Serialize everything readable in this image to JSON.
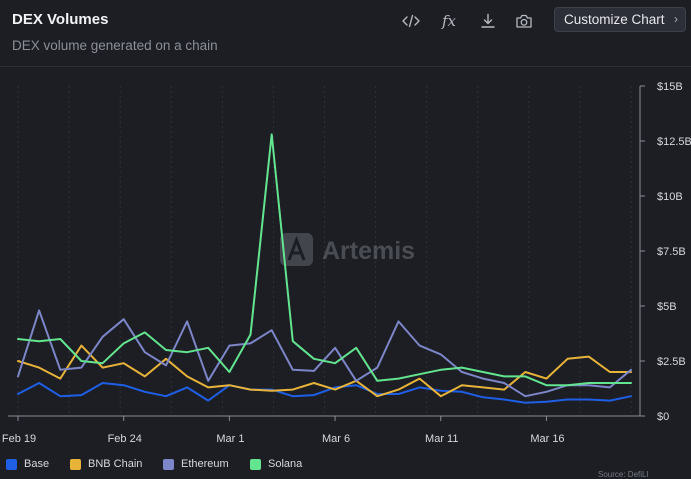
{
  "header": {
    "title": "DEX Volumes",
    "subtitle": "DEX volume generated on a chain",
    "customize_label": "Customize Chart"
  },
  "toolbar": {
    "icons": [
      "code-icon",
      "formula-icon",
      "download-icon",
      "camera-icon"
    ],
    "fx_text": "fx"
  },
  "watermark": "Artemis",
  "footnote": "Source: DefiLl",
  "chart_data": {
    "type": "line",
    "x": [
      "2024-02-19",
      "2024-02-20",
      "2024-02-21",
      "2024-02-22",
      "2024-02-23",
      "2024-02-24",
      "2024-02-25",
      "2024-02-26",
      "2024-02-27",
      "2024-02-28",
      "2024-02-29",
      "2024-03-01",
      "2024-03-02",
      "2024-03-03",
      "2024-03-04",
      "2024-03-05",
      "2024-03-06",
      "2024-03-07",
      "2024-03-08",
      "2024-03-09",
      "2024-03-10",
      "2024-03-11",
      "2024-03-12",
      "2024-03-13",
      "2024-03-14",
      "2024-03-15",
      "2024-03-16",
      "2024-03-17",
      "2024-03-18",
      "2024-03-19"
    ],
    "x_tick_labels": [
      "Feb 19",
      "Feb 24",
      "Mar 1",
      "Mar 6",
      "Mar 11",
      "Mar 16"
    ],
    "x_tick_index": [
      0,
      5,
      10,
      15,
      20,
      25
    ],
    "y_tick_values": [
      0,
      2.5,
      5,
      7.5,
      10,
      12.5,
      15
    ],
    "y_tick_labels": [
      "$0",
      "$2.5B",
      "$5B",
      "$7.5B",
      "$10B",
      "$12.5B",
      "$15B"
    ],
    "ylim": [
      0,
      15
    ],
    "y_unit": "billions USD",
    "y_axis_side": "right",
    "grid": "vertical dashed",
    "legend_position": "bottom-left",
    "series": [
      {
        "name": "Base",
        "color": "#1f5fe6",
        "values": [
          1.0,
          1.5,
          0.9,
          0.95,
          1.5,
          1.4,
          1.1,
          0.9,
          1.3,
          0.7,
          1.4,
          1.2,
          1.2,
          0.9,
          0.95,
          1.3,
          1.4,
          1.0,
          1.0,
          1.3,
          1.15,
          1.1,
          0.85,
          0.75,
          0.6,
          0.65,
          0.75,
          0.75,
          0.7,
          0.9
        ]
      },
      {
        "name": "BNB Chain",
        "color": "#e8b339",
        "values": [
          2.5,
          2.2,
          1.7,
          3.2,
          2.2,
          2.4,
          1.8,
          2.6,
          1.8,
          1.3,
          1.4,
          1.2,
          1.15,
          1.2,
          1.5,
          1.2,
          1.6,
          0.9,
          1.2,
          1.7,
          0.9,
          1.4,
          1.3,
          1.2,
          2.0,
          1.7,
          2.6,
          2.7,
          2.0,
          2.0
        ]
      },
      {
        "name": "Ethereum",
        "color": "#7c86c8",
        "values": [
          1.8,
          4.8,
          2.1,
          2.2,
          3.6,
          4.4,
          2.9,
          2.3,
          4.3,
          1.6,
          3.2,
          3.3,
          3.9,
          2.1,
          2.05,
          3.1,
          1.6,
          2.2,
          4.3,
          3.2,
          2.8,
          2.0,
          1.7,
          1.5,
          0.9,
          1.1,
          1.4,
          1.4,
          1.3,
          2.1
        ]
      },
      {
        "name": "Solana",
        "color": "#63e48f",
        "values": [
          3.5,
          3.4,
          3.5,
          2.5,
          2.4,
          3.3,
          3.8,
          3.0,
          2.9,
          3.1,
          2.0,
          3.7,
          12.8,
          3.4,
          2.6,
          2.4,
          3.1,
          1.6,
          1.7,
          1.9,
          2.1,
          2.2,
          2.0,
          1.8,
          1.8,
          1.4,
          1.4,
          1.5,
          1.5,
          1.5
        ]
      }
    ]
  }
}
